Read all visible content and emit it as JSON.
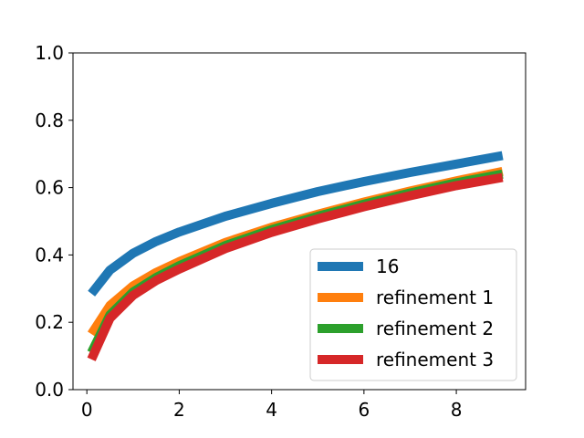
{
  "chart_data": {
    "type": "line",
    "title": "",
    "xlabel": "",
    "ylabel": "",
    "xlim": [
      -0.3,
      9.5
    ],
    "ylim": [
      0.0,
      1.0
    ],
    "xticks": [
      0,
      2,
      4,
      6,
      8
    ],
    "xtick_labels": [
      "0",
      "2",
      "4",
      "6",
      "8"
    ],
    "yticks": [
      0.0,
      0.2,
      0.4,
      0.6,
      0.8,
      1.0
    ],
    "ytick_labels": [
      "0.0",
      "0.2",
      "0.4",
      "0.6",
      "0.8",
      "1.0"
    ],
    "grid": false,
    "legend_position": "lower-right",
    "x": [
      0.1,
      0.5,
      1,
      1.5,
      2,
      3,
      4,
      5,
      6,
      7,
      8,
      9
    ],
    "series": [
      {
        "name": "16",
        "color": "#1f77b4",
        "values": [
          0.285,
          0.355,
          0.405,
          0.44,
          0.468,
          0.515,
          0.553,
          0.588,
          0.618,
          0.645,
          0.67,
          0.695
        ]
      },
      {
        "name": "refinement 1",
        "color": "#ff7f0e",
        "values": [
          0.165,
          0.25,
          0.308,
          0.348,
          0.38,
          0.437,
          0.482,
          0.521,
          0.557,
          0.59,
          0.62,
          0.648
        ]
      },
      {
        "name": "refinement 2",
        "color": "#2ca02c",
        "values": [
          0.11,
          0.222,
          0.29,
          0.333,
          0.368,
          0.428,
          0.475,
          0.515,
          0.551,
          0.584,
          0.614,
          0.64
        ]
      },
      {
        "name": "refinement 3",
        "color": "#d62728",
        "values": [
          0.09,
          0.212,
          0.28,
          0.324,
          0.358,
          0.419,
          0.467,
          0.507,
          0.543,
          0.576,
          0.606,
          0.63
        ]
      }
    ]
  }
}
